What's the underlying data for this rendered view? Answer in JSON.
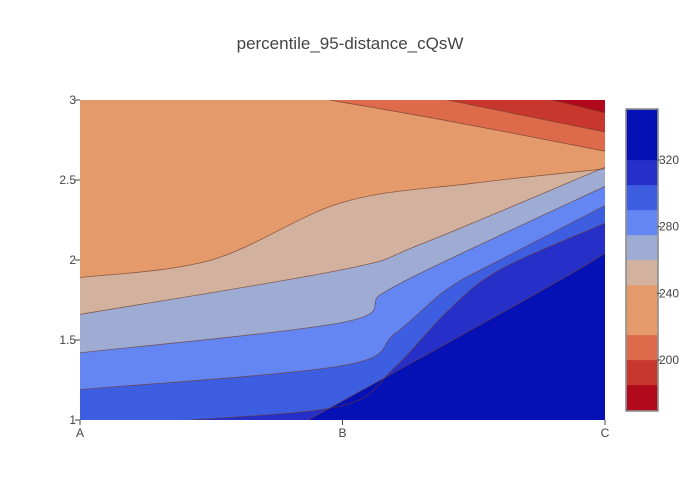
{
  "chart_data": {
    "type": "contour",
    "title": "percentile_95-distance_cQsW",
    "xlabel": "",
    "ylabel": "",
    "x_categories": [
      "A",
      "B",
      "C"
    ],
    "y_ticks": [
      "1",
      "1.5",
      "2",
      "2.5",
      "3"
    ],
    "ylim": [
      1,
      3
    ],
    "colorscale_name": "RdBu-like (blue high, red low)",
    "zlim": [
      170,
      350
    ],
    "contour_interval": 15,
    "colorbar_ticks": [
      "200",
      "240",
      "280",
      "320"
    ],
    "colorbar_tick_values": [
      200,
      240,
      280,
      320
    ],
    "level_colors": [
      "#b0091c",
      "#c8372e",
      "#dc6a4b",
      "#e49a6a",
      "#d2b19e",
      "#9eacd3",
      "#6486f2",
      "#3e5ee2",
      "#2630c8",
      "#0510b5"
    ],
    "bands_low_to_high": [
      {
        "range": [
          170,
          185
        ],
        "color": "#b0091c"
      },
      {
        "range": [
          185,
          200
        ],
        "color": "#c8372e"
      },
      {
        "range": [
          200,
          215
        ],
        "color": "#dc6a4b"
      },
      {
        "range": [
          215,
          245
        ],
        "color": "#e49a6a"
      },
      {
        "range": [
          245,
          260
        ],
        "color": "#d2b19e"
      },
      {
        "range": [
          260,
          275
        ],
        "color": "#9eacd3"
      },
      {
        "range": [
          275,
          290
        ],
        "color": "#6486f2"
      },
      {
        "range": [
          290,
          305
        ],
        "color": "#3e5ee2"
      },
      {
        "range": [
          305,
          320
        ],
        "color": "#2630c8"
      },
      {
        "range": [
          320,
          350
        ],
        "color": "#0510b5"
      }
    ],
    "contour_lines": [
      {
        "level": 320,
        "points": [
          [
            0.87,
            1.0
          ],
          [
            1.95,
            1.99
          ],
          [
            2.0,
            2.13
          ]
        ]
      },
      {
        "level": 305,
        "points": [
          [
            0.42,
            1.0
          ],
          [
            1.0,
            1.09
          ],
          [
            1.2,
            1.33
          ],
          [
            1.4,
            1.68
          ],
          [
            1.6,
            1.94
          ],
          [
            2.0,
            2.23
          ]
        ]
      },
      {
        "level": 290,
        "points": [
          [
            0.0,
            1.19
          ],
          [
            1.0,
            1.34
          ],
          [
            1.2,
            1.54
          ],
          [
            1.4,
            1.82
          ],
          [
            1.6,
            2.0
          ],
          [
            2.0,
            2.34
          ]
        ]
      },
      {
        "level": 275,
        "points": [
          [
            0.0,
            1.42
          ],
          [
            1.0,
            1.61
          ],
          [
            1.15,
            1.79
          ],
          [
            1.4,
            2.0
          ],
          [
            2.0,
            2.46
          ]
        ]
      },
      {
        "level": 260,
        "points": [
          [
            0.0,
            1.66
          ],
          [
            1.0,
            1.94
          ],
          [
            1.3,
            2.1
          ],
          [
            2.0,
            2.58
          ]
        ]
      },
      {
        "level": 245,
        "points": [
          [
            0.0,
            1.89
          ],
          [
            0.5,
            2.0
          ],
          [
            1.0,
            2.36
          ],
          [
            1.5,
            2.48
          ],
          [
            2.0,
            2.57
          ]
        ]
      },
      {
        "level": 215,
        "points": [
          [
            0.95,
            3.0
          ],
          [
            1.4,
            2.87
          ],
          [
            2.0,
            2.68
          ]
        ]
      },
      {
        "level": 200,
        "points": [
          [
            1.4,
            3.0
          ],
          [
            2.0,
            2.8
          ]
        ]
      },
      {
        "level": 185,
        "points": [
          [
            1.8,
            3.0
          ],
          [
            2.0,
            2.92
          ]
        ]
      }
    ]
  }
}
